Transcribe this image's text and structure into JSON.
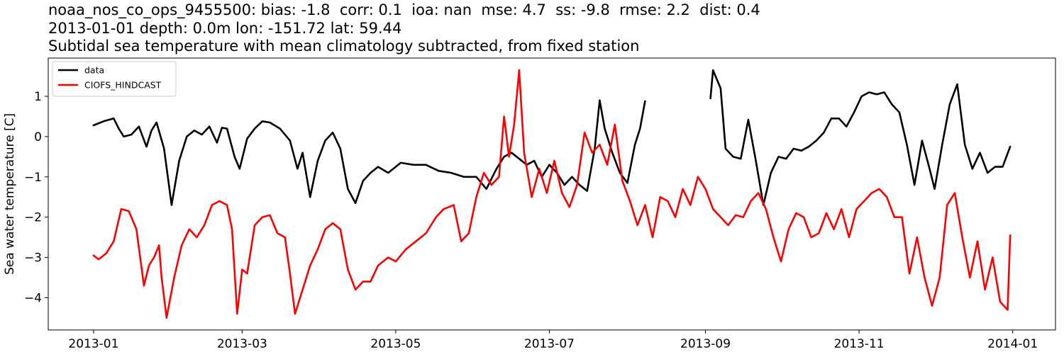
{
  "title": {
    "line1": "noaa_nos_co_ops_9455500: bias: -1.8  corr: 0.1  ioa: nan  mse: 4.7  ss: -9.8  rmse: 2.2  dist: 0.4",
    "line2": "2013-01-01 depth: 0.0m lon: -151.72 lat: 59.44",
    "line3": "Subtidal sea temperature with mean climatology subtracted, from fixed station"
  },
  "chart_data": {
    "type": "line",
    "xlabel": "",
    "ylabel": "Sea water temperature [C]",
    "x_type": "date",
    "xlim": [
      "2012-12-14",
      "2014-01-18"
    ],
    "ylim": [
      -4.8,
      1.95
    ],
    "x_ticks": [
      "2013-01-01",
      "2013-03-01",
      "2013-05-01",
      "2013-07-01",
      "2013-09-01",
      "2013-11-01",
      "2014-01-01"
    ],
    "x_tick_labels": [
      "2013-01",
      "2013-03",
      "2013-05",
      "2013-07",
      "2013-09",
      "2013-11",
      "2014-01"
    ],
    "y_ticks": [
      1,
      0,
      -1,
      -2,
      -3,
      -4
    ],
    "y_tick_labels": [
      "1",
      "0",
      "−1",
      "−2",
      "−3",
      "−4"
    ],
    "grid": false,
    "legend": "upper-left",
    "series": [
      {
        "name": "data",
        "color": "#000000",
        "segments": [
          {
            "x": [
              "2013-01-01",
              "2013-01-05",
              "2013-01-09",
              "2013-01-11",
              "2013-01-13",
              "2013-01-16",
              "2013-01-19",
              "2013-01-22",
              "2013-01-24",
              "2013-01-26",
              "2013-01-29",
              "2013-02-01",
              "2013-02-04",
              "2013-02-07",
              "2013-02-10",
              "2013-02-13",
              "2013-02-16",
              "2013-02-19",
              "2013-02-21",
              "2013-02-23",
              "2013-02-26",
              "2013-02-28",
              "2013-03-03",
              "2013-03-06",
              "2013-03-09",
              "2013-03-12",
              "2013-03-16",
              "2013-03-20",
              "2013-03-23",
              "2013-03-25",
              "2013-03-28",
              "2013-03-31",
              "2013-04-03",
              "2013-04-06",
              "2013-04-09",
              "2013-04-12",
              "2013-04-15",
              "2013-04-18",
              "2013-04-21",
              "2013-04-24",
              "2013-04-28",
              "2013-05-03",
              "2013-05-08",
              "2013-05-13",
              "2013-05-18",
              "2013-05-23",
              "2013-05-28",
              "2013-06-02",
              "2013-06-06",
              "2013-06-10",
              "2013-06-13",
              "2013-06-16",
              "2013-06-19",
              "2013-06-22",
              "2013-06-25",
              "2013-06-28",
              "2013-07-01",
              "2013-07-04",
              "2013-07-07",
              "2013-07-10",
              "2013-07-13",
              "2013-07-16",
              "2013-07-19",
              "2013-07-21",
              "2013-07-23",
              "2013-07-26",
              "2013-07-29",
              "2013-08-01",
              "2013-08-04",
              "2013-08-06",
              "2013-08-08"
            ],
            "y": [
              0.28,
              0.38,
              0.45,
              0.2,
              0.0,
              0.05,
              0.25,
              -0.25,
              0.15,
              0.35,
              -0.3,
              -1.7,
              -0.6,
              0.0,
              0.15,
              0.05,
              0.25,
              -0.15,
              0.22,
              0.2,
              -0.5,
              -0.8,
              -0.05,
              0.2,
              0.38,
              0.35,
              0.2,
              -0.1,
              -0.8,
              -0.4,
              -1.5,
              -0.6,
              -0.1,
              0.1,
              -0.3,
              -1.3,
              -1.65,
              -1.1,
              -0.9,
              -0.75,
              -0.9,
              -0.65,
              -0.7,
              -0.7,
              -0.85,
              -0.9,
              -1.0,
              -1.0,
              -1.3,
              -0.8,
              -0.5,
              -0.4,
              -0.55,
              -0.7,
              -0.6,
              -1.0,
              -0.7,
              -0.9,
              -1.2,
              -1.0,
              -1.2,
              -1.35,
              -0.3,
              0.9,
              0.2,
              -0.4,
              -0.9,
              -1.15,
              -0.2,
              0.2,
              0.88
            ]
          },
          {
            "x": [
              "2013-09-03",
              "2013-09-04",
              "2013-09-07",
              "2013-09-09",
              "2013-09-12",
              "2013-09-15",
              "2013-09-18",
              "2013-09-21",
              "2013-09-24",
              "2013-09-27",
              "2013-09-30",
              "2013-10-03",
              "2013-10-06",
              "2013-10-09",
              "2013-10-12",
              "2013-10-15",
              "2013-10-18",
              "2013-10-21",
              "2013-10-24",
              "2013-10-27",
              "2013-10-30",
              "2013-11-02",
              "2013-11-05",
              "2013-11-08",
              "2013-11-11",
              "2013-11-14",
              "2013-11-17",
              "2013-11-20",
              "2013-11-23",
              "2013-11-26",
              "2013-11-29",
              "2013-12-01",
              "2013-12-04",
              "2013-12-07",
              "2013-12-10",
              "2013-12-13",
              "2013-12-16",
              "2013-12-19",
              "2013-12-22",
              "2013-12-25",
              "2013-12-28",
              "2013-12-31"
            ],
            "y": [
              0.95,
              1.65,
              1.2,
              -0.3,
              -0.5,
              -0.55,
              0.42,
              -0.6,
              -1.7,
              -0.9,
              -0.5,
              -0.55,
              -0.3,
              -0.35,
              -0.25,
              -0.1,
              0.1,
              0.45,
              0.45,
              0.25,
              0.6,
              1.0,
              1.1,
              1.05,
              1.1,
              0.8,
              0.6,
              -0.2,
              -1.2,
              -0.1,
              -0.8,
              -1.3,
              -0.2,
              0.8,
              1.3,
              -0.2,
              -0.8,
              -0.4,
              -0.9,
              -0.75,
              -0.75,
              -0.25
            ]
          }
        ]
      },
      {
        "name": "CIOFS_HINDCAST",
        "color": "#ff0000",
        "segments": [
          {
            "x": [
              "2013-01-01",
              "2013-01-03",
              "2013-01-06",
              "2013-01-09",
              "2013-01-12",
              "2013-01-15",
              "2013-01-18",
              "2013-01-21",
              "2013-01-23",
              "2013-01-25",
              "2013-01-27",
              "2013-01-28",
              "2013-01-30",
              "2013-02-02",
              "2013-02-05",
              "2013-02-08",
              "2013-02-11",
              "2013-02-14",
              "2013-02-17",
              "2013-02-20",
              "2013-02-23",
              "2013-02-25",
              "2013-02-27",
              "2013-03-01",
              "2013-03-03",
              "2013-03-06",
              "2013-03-09",
              "2013-03-12",
              "2013-03-15",
              "2013-03-18",
              "2013-03-20",
              "2013-03-22",
              "2013-03-25",
              "2013-03-28",
              "2013-03-31",
              "2013-04-03",
              "2013-04-06",
              "2013-04-09",
              "2013-04-12",
              "2013-04-15",
              "2013-04-18",
              "2013-04-21",
              "2013-04-24",
              "2013-04-28",
              "2013-05-01",
              "2013-05-05",
              "2013-05-09",
              "2013-05-13",
              "2013-05-17",
              "2013-05-20",
              "2013-05-24",
              "2013-05-27",
              "2013-05-30",
              "2013-06-02",
              "2013-06-05",
              "2013-06-08",
              "2013-06-11",
              "2013-06-13",
              "2013-06-15",
              "2013-06-17",
              "2013-06-19",
              "2013-06-21",
              "2013-06-24",
              "2013-06-27",
              "2013-06-30",
              "2013-07-03",
              "2013-07-06",
              "2013-07-09",
              "2013-07-12",
              "2013-07-15",
              "2013-07-18",
              "2013-07-21",
              "2013-07-24",
              "2013-07-27",
              "2013-07-30",
              "2013-08-02",
              "2013-08-05",
              "2013-08-08",
              "2013-08-11",
              "2013-08-14",
              "2013-08-17",
              "2013-08-20",
              "2013-08-23",
              "2013-08-26",
              "2013-08-29",
              "2013-09-01",
              "2013-09-04",
              "2013-09-07",
              "2013-09-10",
              "2013-09-13",
              "2013-09-16",
              "2013-09-19",
              "2013-09-22",
              "2013-09-25",
              "2013-09-28",
              "2013-10-01",
              "2013-10-04",
              "2013-10-07",
              "2013-10-10",
              "2013-10-13",
              "2013-10-16",
              "2013-10-19",
              "2013-10-22",
              "2013-10-25",
              "2013-10-28",
              "2013-10-31",
              "2013-11-03",
              "2013-11-06",
              "2013-11-09",
              "2013-11-12",
              "2013-11-15",
              "2013-11-18",
              "2013-11-21",
              "2013-11-24",
              "2013-11-27",
              "2013-11-30",
              "2013-12-03",
              "2013-12-06",
              "2013-12-09",
              "2013-12-12",
              "2013-12-15",
              "2013-12-18",
              "2013-12-21",
              "2013-12-24",
              "2013-12-27",
              "2013-12-30",
              "2013-12-31"
            ],
            "y": [
              -2.95,
              -3.05,
              -2.9,
              -2.6,
              -1.8,
              -1.85,
              -2.3,
              -3.7,
              -3.2,
              -3.0,
              -2.7,
              -3.5,
              -4.5,
              -3.5,
              -2.7,
              -2.3,
              -2.5,
              -2.2,
              -1.7,
              -1.6,
              -1.7,
              -2.3,
              -4.4,
              -3.3,
              -3.4,
              -2.2,
              -2.0,
              -1.95,
              -2.4,
              -2.5,
              -3.4,
              -4.4,
              -3.8,
              -3.2,
              -2.8,
              -2.3,
              -2.15,
              -2.3,
              -3.3,
              -3.8,
              -3.6,
              -3.6,
              -3.2,
              -3.0,
              -3.1,
              -2.8,
              -2.6,
              -2.4,
              -2.0,
              -1.8,
              -1.7,
              -2.6,
              -2.4,
              -1.5,
              -0.9,
              -1.2,
              -1.0,
              0.5,
              -0.5,
              0.3,
              1.65,
              -0.4,
              -1.5,
              -0.8,
              -1.4,
              -0.6,
              -1.4,
              -1.75,
              -1.2,
              0.1,
              -0.4,
              -0.2,
              -0.7,
              0.3,
              -1.1,
              -1.6,
              -2.2,
              -1.7,
              -2.5,
              -1.5,
              -1.6,
              -2.0,
              -1.3,
              -1.7,
              -1.0,
              -1.3,
              -1.8,
              -2.0,
              -2.2,
              -1.95,
              -2.0,
              -1.6,
              -1.4,
              -1.8,
              -2.5,
              -3.1,
              -2.3,
              -1.9,
              -2.0,
              -2.5,
              -2.4,
              -1.9,
              -2.3,
              -1.8,
              -2.5,
              -1.8,
              -1.6,
              -1.4,
              -1.3,
              -1.5,
              -2.0,
              -2.0,
              -3.4,
              -2.5,
              -3.5,
              -4.2,
              -3.5,
              -1.7,
              -1.4,
              -2.5,
              -3.5,
              -2.6,
              -3.8,
              -3.0,
              -4.1,
              -4.3,
              -2.45
            ]
          }
        ]
      }
    ]
  }
}
